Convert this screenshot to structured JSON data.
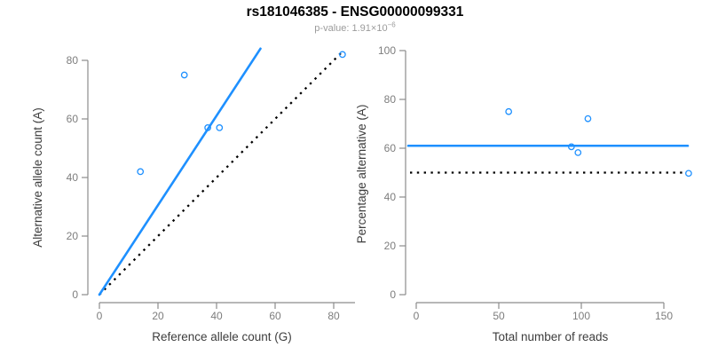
{
  "header": {
    "title": "rs181046385 - ENSG00000099331",
    "subtitle_prefix": "p-value: 1.91×10",
    "subtitle_exponent": "−6"
  },
  "colors": {
    "accent_blue": "#1E90FF",
    "dotted_black": "#000000",
    "axis_gray": "#8c8c8c",
    "tick_label_gray": "#7d7d7d",
    "axis_title_dark": "#3d3d3d",
    "title_black": "#000000",
    "subtitle_gray": "#9b9b9b"
  },
  "chart_data": [
    {
      "type": "scatter",
      "panel": "left",
      "title": "",
      "xlabel": "Reference allele count (G)",
      "ylabel": "Alternative allele count (A)",
      "xlim": [
        0,
        87
      ],
      "ylim": [
        0,
        85
      ],
      "x_ticks": [
        0,
        20,
        40,
        60,
        80
      ],
      "y_ticks": [
        0,
        20,
        40,
        60,
        80
      ],
      "grid": false,
      "legend": null,
      "points": [
        [
          14,
          42
        ],
        [
          29,
          75
        ],
        [
          37,
          57
        ],
        [
          41,
          57
        ],
        [
          83,
          82
        ]
      ],
      "solid_line": {
        "kind": "segment",
        "x1": 0,
        "y1": 0,
        "x2": 55,
        "y2": 84,
        "meaning": "fitted allelic ratio line"
      },
      "dotted_line": {
        "kind": "segment",
        "x1": 0,
        "y1": 0,
        "x2": 83,
        "y2": 83,
        "meaning": "identity line y=x"
      }
    },
    {
      "type": "scatter",
      "panel": "right",
      "title": "",
      "xlabel": "Total number of reads",
      "ylabel": "Percentage alternative (A)",
      "xlim": [
        0,
        170
      ],
      "ylim": [
        0,
        100
      ],
      "x_ticks": [
        0,
        50,
        100,
        150
      ],
      "y_ticks": [
        0,
        20,
        40,
        60,
        80,
        100
      ],
      "grid": false,
      "legend": null,
      "points": [
        [
          56,
          75
        ],
        [
          94,
          60.6
        ],
        [
          98,
          58.2
        ],
        [
          104,
          72.1
        ],
        [
          165,
          49.7
        ]
      ],
      "solid_line": {
        "kind": "horizontal",
        "y": 61,
        "meaning": "mean percentage alternative"
      },
      "dotted_line": {
        "kind": "horizontal",
        "y": 50,
        "meaning": "expected 50% line"
      }
    }
  ]
}
